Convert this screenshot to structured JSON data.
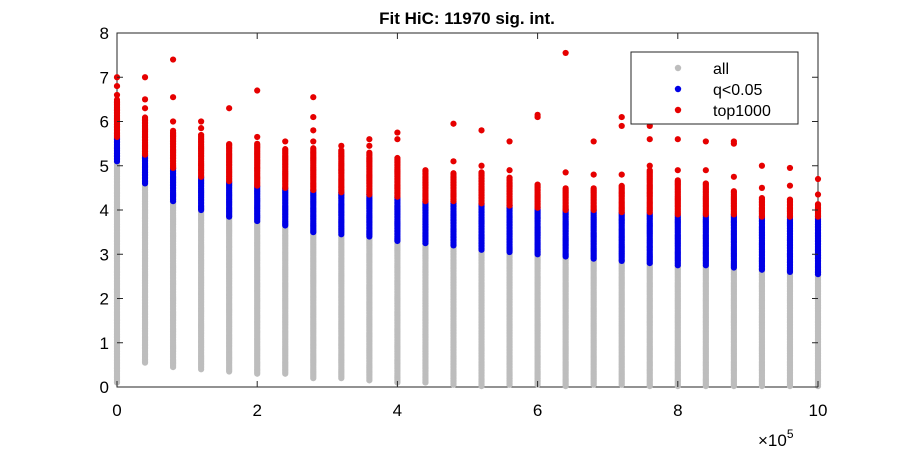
{
  "chart_data": {
    "type": "scatter",
    "title": "Fit HiC: 11970 sig. int.",
    "xlabel": "",
    "ylabel": "",
    "x_exponent_label": "×10",
    "x_exponent_power": "5",
    "xlim": [
      0,
      10
    ],
    "ylim": [
      0,
      8
    ],
    "x_ticks": [
      0,
      2,
      4,
      6,
      8,
      10
    ],
    "x_tick_labels": [
      "0",
      "2",
      "4",
      "6",
      "8",
      "10"
    ],
    "y_ticks": [
      0,
      1,
      2,
      3,
      4,
      5,
      6,
      7,
      8
    ],
    "y_tick_labels": [
      "0",
      "1",
      "2",
      "3",
      "4",
      "5",
      "6",
      "7",
      "8"
    ],
    "grid": false,
    "legend_position": "top-right",
    "colors": {
      "all": "#bdbdbd",
      "q<0.05": "#0000e6",
      "top1000": "#e60000"
    },
    "x_note": "x values in units of 10^5; one column of points at each distance bin (multiples of 0.4)",
    "series": [
      {
        "name": "all",
        "columns": [
          {
            "x": 0.0,
            "ymin": 0.1,
            "ymax": 5.1
          },
          {
            "x": 0.4,
            "ymin": 0.55,
            "ymax": 4.6
          },
          {
            "x": 0.8,
            "ymin": 0.45,
            "ymax": 4.2
          },
          {
            "x": 1.2,
            "ymin": 0.4,
            "ymax": 4.0
          },
          {
            "x": 1.6,
            "ymin": 0.35,
            "ymax": 3.85
          },
          {
            "x": 2.0,
            "ymin": 0.3,
            "ymax": 3.75
          },
          {
            "x": 2.4,
            "ymin": 0.3,
            "ymax": 3.65
          },
          {
            "x": 2.8,
            "ymin": 0.2,
            "ymax": 3.5
          },
          {
            "x": 3.2,
            "ymin": 0.2,
            "ymax": 3.45
          },
          {
            "x": 3.6,
            "ymin": 0.15,
            "ymax": 3.4
          },
          {
            "x": 4.0,
            "ymin": 0.1,
            "ymax": 3.3
          },
          {
            "x": 4.4,
            "ymin": 0.1,
            "ymax": 3.25
          },
          {
            "x": 4.8,
            "ymin": 0.05,
            "ymax": 3.2
          },
          {
            "x": 5.2,
            "ymin": 0.02,
            "ymax": 3.1
          },
          {
            "x": 5.6,
            "ymin": 0.05,
            "ymax": 3.05
          },
          {
            "x": 6.0,
            "ymin": 0.05,
            "ymax": 3.0
          },
          {
            "x": 6.4,
            "ymin": 0.02,
            "ymax": 2.95
          },
          {
            "x": 6.8,
            "ymin": 0.05,
            "ymax": 2.9
          },
          {
            "x": 7.2,
            "ymin": 0.05,
            "ymax": 2.85
          },
          {
            "x": 7.6,
            "ymin": 0.02,
            "ymax": 2.8
          },
          {
            "x": 8.0,
            "ymin": 0.02,
            "ymax": 2.75
          },
          {
            "x": 8.4,
            "ymin": 0.02,
            "ymax": 2.75
          },
          {
            "x": 8.8,
            "ymin": 0.02,
            "ymax": 2.7
          },
          {
            "x": 9.2,
            "ymin": 0.02,
            "ymax": 2.65
          },
          {
            "x": 9.6,
            "ymin": 0.02,
            "ymax": 2.6
          },
          {
            "x": 10.0,
            "ymin": 0.02,
            "ymax": 2.55
          }
        ]
      },
      {
        "name": "q<0.05",
        "columns": [
          {
            "x": 0.0,
            "ymin": 5.1,
            "ymax": 5.65
          },
          {
            "x": 0.4,
            "ymin": 4.6,
            "ymax": 5.25
          },
          {
            "x": 0.8,
            "ymin": 4.2,
            "ymax": 4.95
          },
          {
            "x": 1.2,
            "ymin": 4.0,
            "ymax": 4.75
          },
          {
            "x": 1.6,
            "ymin": 3.85,
            "ymax": 4.65
          },
          {
            "x": 2.0,
            "ymin": 3.75,
            "ymax": 4.55
          },
          {
            "x": 2.4,
            "ymin": 3.65,
            "ymax": 4.5
          },
          {
            "x": 2.8,
            "ymin": 3.5,
            "ymax": 4.45
          },
          {
            "x": 3.2,
            "ymin": 3.45,
            "ymax": 4.4
          },
          {
            "x": 3.6,
            "ymin": 3.4,
            "ymax": 4.35
          },
          {
            "x": 4.0,
            "ymin": 3.3,
            "ymax": 4.3
          },
          {
            "x": 4.4,
            "ymin": 3.25,
            "ymax": 4.2
          },
          {
            "x": 4.8,
            "ymin": 3.2,
            "ymax": 4.2
          },
          {
            "x": 5.2,
            "ymin": 3.1,
            "ymax": 4.15
          },
          {
            "x": 5.6,
            "ymin": 3.05,
            "ymax": 4.1
          },
          {
            "x": 6.0,
            "ymin": 3.0,
            "ymax": 4.05
          },
          {
            "x": 6.4,
            "ymin": 2.95,
            "ymax": 4.0
          },
          {
            "x": 6.8,
            "ymin": 2.9,
            "ymax": 4.0
          },
          {
            "x": 7.2,
            "ymin": 2.85,
            "ymax": 3.95
          },
          {
            "x": 7.6,
            "ymin": 2.8,
            "ymax": 3.95
          },
          {
            "x": 8.0,
            "ymin": 2.75,
            "ymax": 3.9
          },
          {
            "x": 8.4,
            "ymin": 2.75,
            "ymax": 3.9
          },
          {
            "x": 8.8,
            "ymin": 2.7,
            "ymax": 3.9
          },
          {
            "x": 9.2,
            "ymin": 2.65,
            "ymax": 3.85
          },
          {
            "x": 9.6,
            "ymin": 2.6,
            "ymax": 3.85
          },
          {
            "x": 10.0,
            "ymin": 2.55,
            "ymax": 3.85
          }
        ]
      },
      {
        "name": "top1000",
        "columns": [
          {
            "x": 0.0,
            "ymin": 5.65,
            "ymax": 6.5,
            "outliers": [
              6.6,
              6.8,
              7.0
            ]
          },
          {
            "x": 0.4,
            "ymin": 5.25,
            "ymax": 6.1,
            "outliers": [
              6.3,
              6.5,
              7.0
            ]
          },
          {
            "x": 0.8,
            "ymin": 4.95,
            "ymax": 5.8,
            "outliers": [
              6.0,
              6.55,
              7.4
            ]
          },
          {
            "x": 1.2,
            "ymin": 4.75,
            "ymax": 5.7,
            "outliers": [
              5.85,
              6.0
            ]
          },
          {
            "x": 1.6,
            "ymin": 4.65,
            "ymax": 5.5,
            "outliers": [
              6.3
            ]
          },
          {
            "x": 2.0,
            "ymin": 4.55,
            "ymax": 5.5,
            "outliers": [
              5.65,
              6.7
            ]
          },
          {
            "x": 2.4,
            "ymin": 4.5,
            "ymax": 5.4,
            "outliers": [
              5.55
            ]
          },
          {
            "x": 2.8,
            "ymin": 4.45,
            "ymax": 5.4,
            "outliers": [
              5.55,
              5.8,
              6.1,
              6.55
            ]
          },
          {
            "x": 3.2,
            "ymin": 4.4,
            "ymax": 5.35,
            "outliers": [
              5.45
            ]
          },
          {
            "x": 3.6,
            "ymin": 4.35,
            "ymax": 5.3,
            "outliers": [
              5.45,
              5.6
            ]
          },
          {
            "x": 4.0,
            "ymin": 4.3,
            "ymax": 5.2,
            "outliers": [
              5.6,
              5.75
            ]
          },
          {
            "x": 4.4,
            "ymin": 4.2,
            "ymax": 4.9
          },
          {
            "x": 4.8,
            "ymin": 4.2,
            "ymax": 4.85,
            "outliers": [
              5.1,
              5.95
            ]
          },
          {
            "x": 5.2,
            "ymin": 4.15,
            "ymax": 4.85,
            "outliers": [
              5.0,
              5.8
            ]
          },
          {
            "x": 5.6,
            "ymin": 4.1,
            "ymax": 4.75,
            "outliers": [
              4.9,
              5.55
            ]
          },
          {
            "x": 6.0,
            "ymin": 4.05,
            "ymax": 4.6,
            "outliers": [
              6.1,
              6.15
            ]
          },
          {
            "x": 6.4,
            "ymin": 4.0,
            "ymax": 4.5,
            "outliers": [
              4.85,
              7.55
            ]
          },
          {
            "x": 6.8,
            "ymin": 4.0,
            "ymax": 4.5,
            "outliers": [
              4.8,
              5.55
            ]
          },
          {
            "x": 7.2,
            "ymin": 3.95,
            "ymax": 4.55,
            "outliers": [
              4.8,
              5.9,
              6.1
            ]
          },
          {
            "x": 7.6,
            "ymin": 3.95,
            "ymax": 4.9,
            "outliers": [
              5.0,
              5.6,
              5.9
            ]
          },
          {
            "x": 8.0,
            "ymin": 3.9,
            "ymax": 4.7,
            "outliers": [
              4.9,
              5.6
            ]
          },
          {
            "x": 8.4,
            "ymin": 3.9,
            "ymax": 4.6,
            "outliers": [
              4.9,
              5.55
            ]
          },
          {
            "x": 8.8,
            "ymin": 3.9,
            "ymax": 4.45,
            "outliers": [
              4.75,
              5.5,
              5.55
            ]
          },
          {
            "x": 9.2,
            "ymin": 3.85,
            "ymax": 4.3,
            "outliers": [
              4.5,
              5.0
            ]
          },
          {
            "x": 9.6,
            "ymin": 3.85,
            "ymax": 4.25,
            "outliers": [
              4.55,
              4.95
            ]
          },
          {
            "x": 10.0,
            "ymin": 3.85,
            "ymax": 4.15,
            "outliers": [
              4.35,
              4.7
            ]
          }
        ]
      }
    ],
    "legend": [
      {
        "label": "all",
        "series": "all"
      },
      {
        "label": "q<0.05",
        "series": "q<0.05"
      },
      {
        "label": "top1000",
        "series": "top1000"
      }
    ]
  }
}
